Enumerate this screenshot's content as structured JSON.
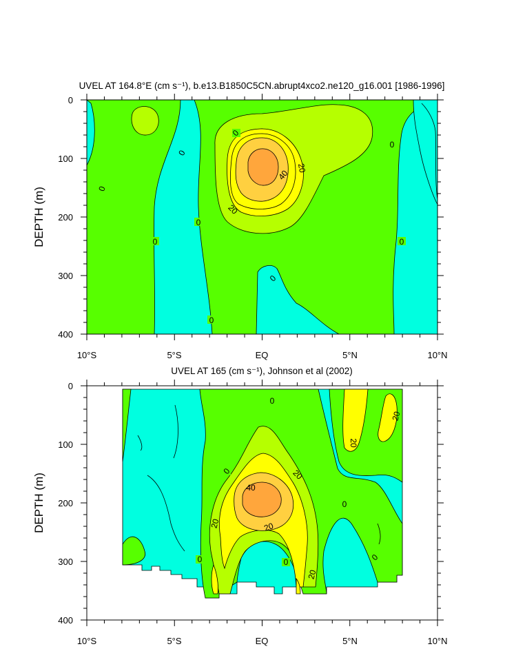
{
  "chart_data": [
    {
      "type": "heatmap",
      "title": "UVEL AT 164.8°E (cm s⁻¹), b.e13.B1850C5CN.abrupt4xco2.ne120_g16.001 [1986-1996]",
      "ylabel": "DEPTH (m)",
      "xlabel": "",
      "x_ticks": [
        "10°S",
        "5°S",
        "EQ",
        "5°N",
        "10°N"
      ],
      "y_ticks": [
        "0",
        "100",
        "200",
        "300",
        "400"
      ],
      "xlim": [
        -10,
        10
      ],
      "ylim": [
        0,
        400
      ],
      "contour_interval": 10,
      "fill_colors": {
        "below_0": "#00ffe0",
        "0_to_10": "#57ff00",
        "10_to_20": "#b6ff00",
        "20_to_30": "#ffff00",
        "30_to_40": "#ffd040",
        "40_to_50": "#ffa63c"
      },
      "contour_labels": [
        "0",
        "0",
        "0",
        "0",
        "0",
        "0",
        "0",
        "0",
        "20",
        "20",
        "40"
      ],
      "core": {
        "lat": 0,
        "depth_m": 120,
        "max_cm_s": 45
      }
    },
    {
      "type": "heatmap",
      "title": "UVEL AT 165 (cm s⁻¹), Johnson et al (2002)",
      "ylabel": "DEPTH (m)",
      "xlabel": "",
      "x_ticks": [
        "10°S",
        "5°S",
        "EQ",
        "5°N",
        "10°N"
      ],
      "y_ticks": [
        "0",
        "100",
        "200",
        "300",
        "400"
      ],
      "xlim": [
        -10,
        10
      ],
      "ylim": [
        0,
        400
      ],
      "data_lat_range": [
        -8,
        8
      ],
      "contour_interval": 10,
      "contour_labels": [
        "0",
        "0",
        "0",
        "0",
        "0",
        "0",
        "0",
        "20",
        "20",
        "20",
        "20",
        "20",
        "40"
      ],
      "core": {
        "lat": -0.5,
        "depth_m": 185,
        "max_cm_s": 45
      }
    }
  ]
}
